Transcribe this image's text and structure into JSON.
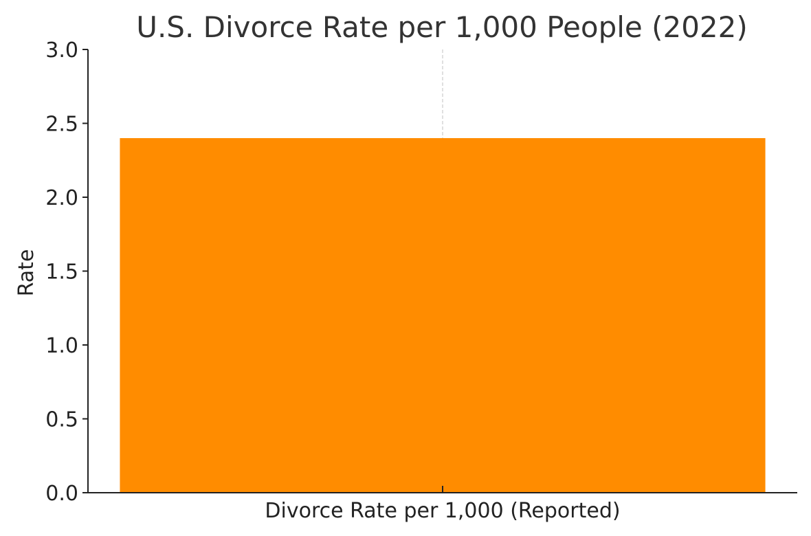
{
  "chart_data": {
    "type": "bar",
    "title": "U.S. Divorce Rate per 1,000 People (2022)",
    "xlabel": "",
    "ylabel": "Rate",
    "categories": [
      "Divorce Rate per 1,000 (Reported)"
    ],
    "values": [
      2.4
    ],
    "ylim": [
      0,
      3.0
    ],
    "yticks": [
      "0.0",
      "0.5",
      "1.0",
      "1.5",
      "2.0",
      "2.5",
      "3.0"
    ],
    "grid": "vertical dashed at category",
    "legend": "none",
    "colors": {
      "bar": "#FF8C00",
      "axis": "#222222",
      "grid": "#cccccc"
    }
  }
}
